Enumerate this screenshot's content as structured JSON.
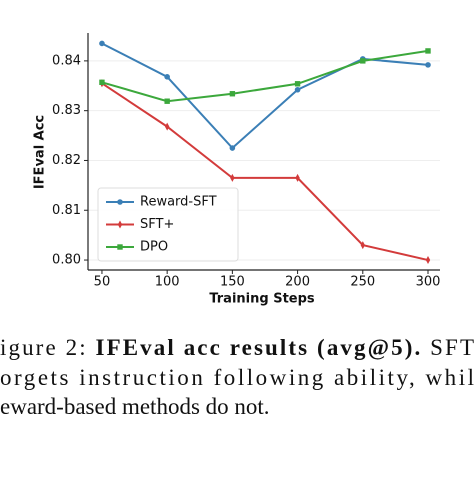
{
  "chart_data": {
    "type": "line",
    "xlabel": "Training Steps",
    "ylabel": "IFEval Acc",
    "x": [
      50,
      100,
      150,
      200,
      250,
      300
    ],
    "series": [
      {
        "name": "Reward-SFT",
        "color": "#3b7fb6",
        "marker": "circle",
        "values": [
          0.8435,
          0.8368,
          0.8225,
          0.8342,
          0.8404,
          0.8392
        ]
      },
      {
        "name": "SFT+",
        "color": "#d33b3b",
        "marker": "diamond",
        "values": [
          0.8355,
          0.8268,
          0.8165,
          0.8165,
          0.803,
          0.8
        ]
      },
      {
        "name": "DPO",
        "color": "#3ca83c",
        "marker": "square",
        "values": [
          0.8357,
          0.8319,
          0.8334,
          0.8354,
          0.84,
          0.842
        ]
      }
    ],
    "xlim": [
      39.3,
      309.2
    ],
    "xticks": [
      50,
      100,
      150,
      200,
      250,
      300
    ],
    "ylim": [
      0.798,
      0.8456
    ],
    "yticks": [
      {
        "value": 0.8,
        "label": "0.80"
      },
      0.81,
      0.82,
      0.83,
      0.84
    ],
    "grid": true,
    "legend": "lower left"
  },
  "caption": {
    "line1": [
      "igure 2: ",
      "IFEval acc results (avg@5).",
      " SFT"
    ],
    "line2": "orgets instruction following ability, whil",
    "line3": "eward-based methods do not."
  }
}
